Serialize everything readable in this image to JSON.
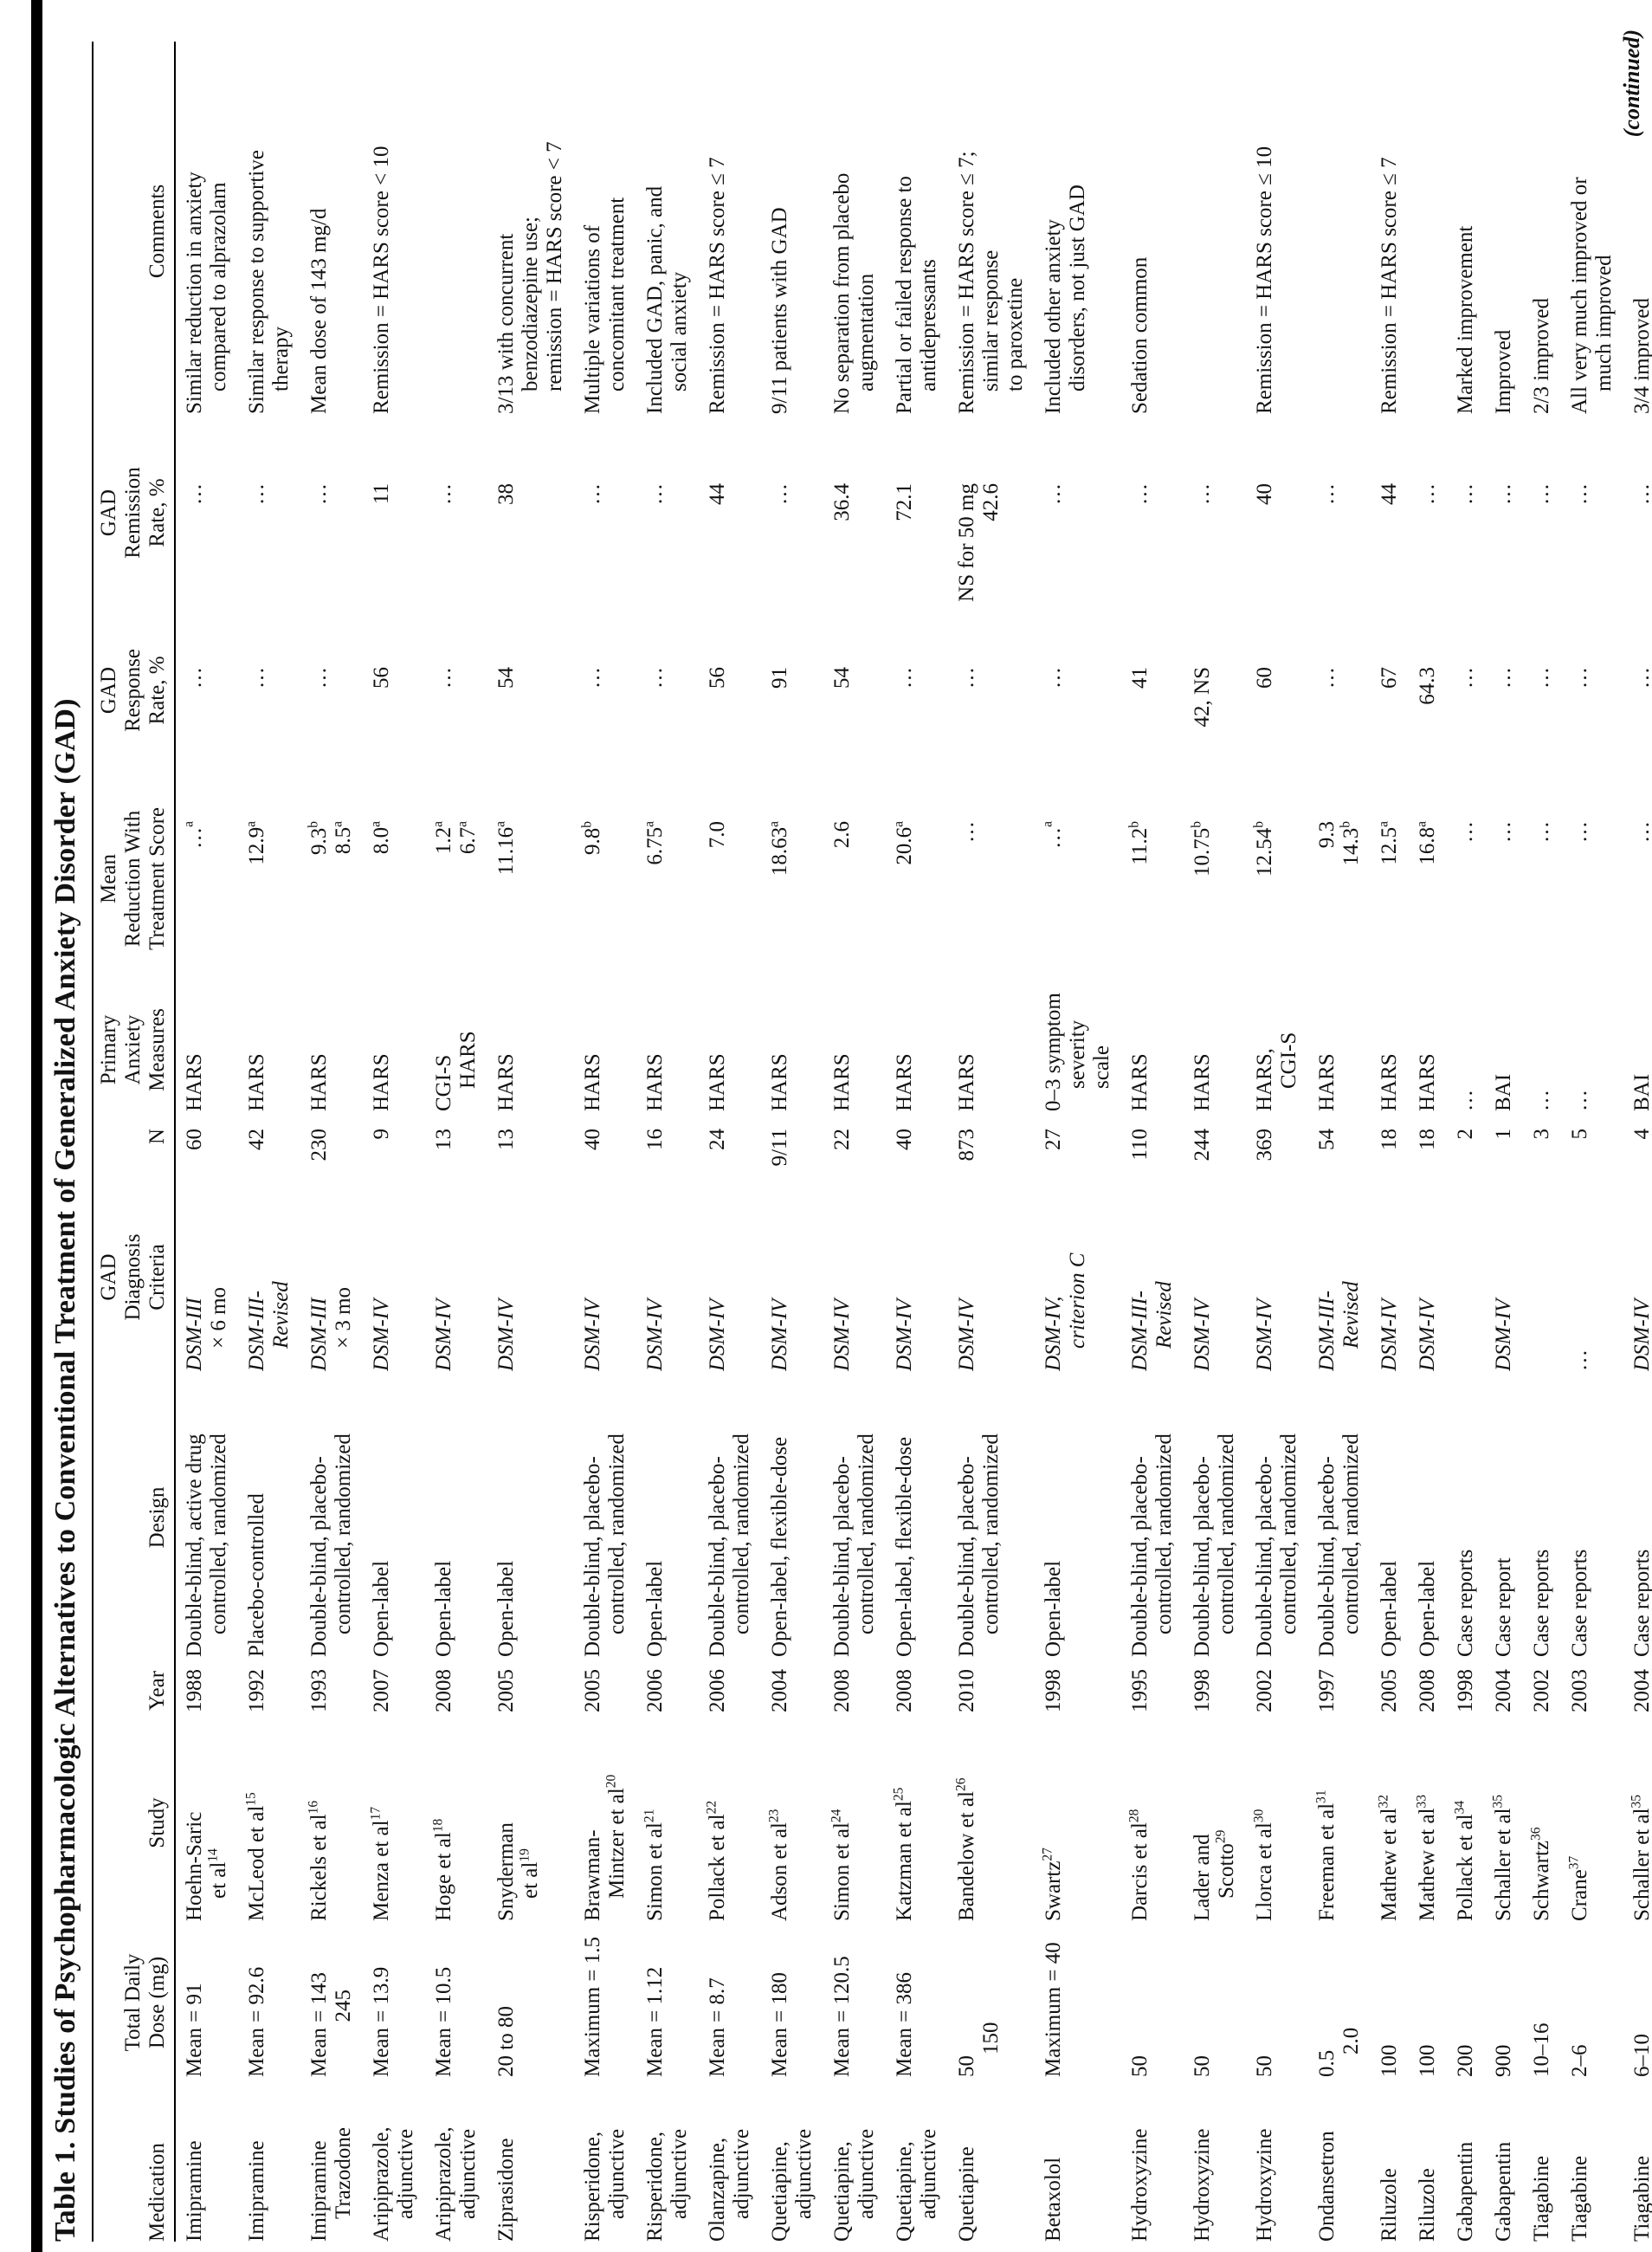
{
  "title": "Table 1. Studies of Psychopharmacologic Alternatives to Conventional Treatment of Generalized Anxiety Disorder (GAD)",
  "continued_note": "(continued)",
  "table": {
    "headers": {
      "med": "Medication",
      "dose": "Total Daily\nDose (mg)",
      "study": "Study",
      "year": "Year",
      "design": "Design",
      "criteria": "GAD\nDiagnosis\nCriteria",
      "n": "N",
      "measures": "Primary\nAnxiety\nMeasures",
      "reduction": "Mean\nReduction With\nTreatment Score",
      "response": "GAD\nResponse\nRate, %",
      "remission": "GAD\nRemission\nRate, %",
      "comments": "Comments"
    },
    "rows": [
      {
        "med": "Imipramine",
        "dose": "Mean = 91",
        "study": "Hoehn-Saric\net al^14",
        "year": "1988",
        "design": "Double-blind, active drug\ncontrolled, randomized",
        "criteria": "*DSM-III*\n× 6 mo",
        "n": "60",
        "measures": "HARS",
        "reduction": "…^a",
        "response": "…",
        "remission": "…",
        "comments": "Similar reduction in anxiety\ncompared to alprazolam"
      },
      {
        "med": "Imipramine",
        "dose": "Mean = 92.6",
        "study": "McLeod et al^15",
        "year": "1992",
        "design": "Placebo-controlled",
        "criteria": "*DSM-III-*\n*Revised*",
        "n": "42",
        "measures": "HARS",
        "reduction": "12.9^a",
        "response": "…",
        "remission": "…",
        "comments": "Similar response to supportive\ntherapy"
      },
      {
        "med": "Imipramine\nTrazodone",
        "dose": "Mean = 143\n   245",
        "study": "Rickels et al^16",
        "year": "1993",
        "design": "Double-blind, placebo-\ncontrolled, randomized",
        "criteria": "*DSM-III*\n× 3 mo",
        "n": "230",
        "measures": "HARS",
        "reduction": "9.3^b\n8.5^a",
        "response": "…",
        "remission": "…",
        "comments": "Mean dose of 143 mg/d"
      },
      {
        "med": "Aripiprazole,\nadjunctive",
        "dose": "Mean = 13.9",
        "study": "Menza et al^17",
        "year": "2007",
        "design": "Open-label",
        "criteria": "*DSM-IV*",
        "n": "9",
        "measures": "HARS",
        "reduction": "8.0^a",
        "response": "56",
        "remission": "11",
        "comments": "Remission = HARS score < 10"
      },
      {
        "med": "Aripiprazole,\nadjunctive",
        "dose": "Mean = 10.5",
        "study": "Hoge et al^18",
        "year": "2008",
        "design": "Open-label",
        "criteria": "*DSM-IV*",
        "n": "13",
        "measures": "CGI-S\nHARS",
        "reduction": "1.2^a\n6.7^a",
        "response": "…",
        "remission": "…",
        "comments": ""
      },
      {
        "med": "Ziprasidone",
        "dose": "20 to 80",
        "study": "Snyderman\net al^19",
        "year": "2005",
        "design": "Open-label",
        "criteria": "*DSM-IV*",
        "n": "13",
        "measures": "HARS",
        "reduction": "11.16^a",
        "response": "54",
        "remission": "38",
        "comments": "3/13 with concurrent\nbenzodiazepine use;\nremission = HARS score < 7"
      },
      {
        "med": "Risperidone,\nadjunctive",
        "dose": "Maximum = 1.5",
        "study": "Brawman-\nMintzer et al^20",
        "year": "2005",
        "design": "Double-blind, placebo-\ncontrolled, randomized",
        "criteria": "*DSM-IV*",
        "n": "40",
        "measures": "HARS",
        "reduction": "9.8^b",
        "response": "…",
        "remission": "…",
        "comments": "Multiple variations of\nconcomitant treatment"
      },
      {
        "med": "Risperidone,\nadjunctive",
        "dose": "Mean = 1.12",
        "study": "Simon et al^21",
        "year": "2006",
        "design": "Open-label",
        "criteria": "*DSM-IV*",
        "n": "16",
        "measures": "HARS",
        "reduction": "6.75^a",
        "response": "…",
        "remission": "…",
        "comments": "Included GAD, panic, and\nsocial anxiety"
      },
      {
        "med": "Olanzapine,\nadjunctive",
        "dose": "Mean = 8.7",
        "study": "Pollack et al^22",
        "year": "2006",
        "design": "Double-blind, placebo-\ncontrolled, randomized",
        "criteria": "*DSM-IV*",
        "n": "24",
        "measures": "HARS",
        "reduction": "7.0",
        "response": "56",
        "remission": "44",
        "comments": "Remission = HARS score ≤ 7"
      },
      {
        "med": "Quetiapine,\nadjunctive",
        "dose": "Mean = 180",
        "study": "Adson et al^23",
        "year": "2004",
        "design": "Open-label, flexible-dose",
        "criteria": "*DSM-IV*",
        "n": "9/11",
        "measures": "HARS",
        "reduction": "18.63^a",
        "response": "91",
        "remission": "…",
        "comments": "9/11 patients with GAD"
      },
      {
        "med": "Quetiapine,\nadjunctive",
        "dose": "Mean = 120.5",
        "study": "Simon et al^24",
        "year": "2008",
        "design": "Double-blind, placebo-\ncontrolled, randomized",
        "criteria": "*DSM-IV*",
        "n": "22",
        "measures": "HARS",
        "reduction": "2.6",
        "response": "54",
        "remission": "36.4",
        "comments": "No separation from placebo\naugmentation"
      },
      {
        "med": "Quetiapine,\nadjunctive",
        "dose": "Mean = 386",
        "study": "Katzman et al^25",
        "year": "2008",
        "design": "Open-label, flexible-dose",
        "criteria": "*DSM-IV*",
        "n": "40",
        "measures": "HARS",
        "reduction": "20.6^a",
        "response": "…",
        "remission": "72.1",
        "comments": "Partial or failed response to\nantidepressants"
      },
      {
        "med": "Quetiapine",
        "dose": "50\n150",
        "study": "Bandelow et al^26",
        "year": "2010",
        "design": "Double-blind, placebo-\ncontrolled, randomized",
        "criteria": "*DSM-IV*",
        "n": "873",
        "measures": "HARS",
        "reduction": "…",
        "response": "…",
        "remission": "NS for 50 mg\n42.6",
        "comments": "Remission = HARS score ≤ 7;\nsimilar response\nto paroxetine"
      },
      {
        "med": "Betaxolol",
        "dose": "Maximum = 40",
        "study": "Swartz^27",
        "year": "1998",
        "design": "Open-label",
        "criteria": "*DSM-IV,*\n*criterion C*",
        "n": "27",
        "measures": "0–3 symptom\nseverity scale",
        "reduction": "…^a",
        "response": "…",
        "remission": "…",
        "comments": "Included other anxiety\ndisorders, not just GAD"
      },
      {
        "med": "Hydroxyzine",
        "dose": "50",
        "study": "Darcis et al^28",
        "year": "1995",
        "design": "Double-blind, placebo-\ncontrolled, randomized",
        "criteria": "*DSM-III-*\n*Revised*",
        "n": "110",
        "measures": "HARS",
        "reduction": "11.2^b",
        "response": "41",
        "remission": "…",
        "comments": "Sedation common"
      },
      {
        "med": "Hydroxyzine",
        "dose": "50",
        "study": "Lader and\nScotto^29",
        "year": "1998",
        "design": "Double-blind, placebo-\ncontrolled, randomized",
        "criteria": "*DSM-IV*",
        "n": "244",
        "measures": "HARS",
        "reduction": "10.75^b",
        "response": "42, NS",
        "remission": "…",
        "comments": ""
      },
      {
        "med": "Hydroxyzine",
        "dose": "50",
        "study": "Llorca et al^30",
        "year": "2002",
        "design": "Double-blind, placebo-\ncontrolled, randomized",
        "criteria": "*DSM-IV*",
        "n": "369",
        "measures": "HARS,\nCGI-S",
        "reduction": "12.54^b",
        "response": "60",
        "remission": "40",
        "comments": "Remission = HARS score ≤ 10"
      },
      {
        "med": "Ondansetron",
        "dose": "0.5\n2.0",
        "study": "Freeman et al^31",
        "year": "1997",
        "design": "Double-blind, placebo-\ncontrolled, randomized",
        "criteria": "*DSM-III-*\n*Revised*",
        "n": "54",
        "measures": "HARS",
        "reduction": "9.3\n14.3^b",
        "response": "…",
        "remission": "…",
        "comments": ""
      },
      {
        "med": "Riluzole",
        "dose": "100",
        "study": "Mathew et al^32",
        "year": "2005",
        "design": "Open-label",
        "criteria": "*DSM-IV*",
        "n": "18",
        "measures": "HARS",
        "reduction": "12.5^a",
        "response": "67",
        "remission": "44",
        "comments": "Remission = HARS score ≤ 7"
      },
      {
        "med": "Riluzole",
        "dose": "100",
        "study": "Mathew et al^33",
        "year": "2008",
        "design": "Open-label",
        "criteria": "*DSM-IV*",
        "n": "18",
        "measures": "HARS",
        "reduction": "16.8^a",
        "response": "64.3",
        "remission": "…",
        "comments": ""
      },
      {
        "med": "Gabapentin",
        "dose": "200",
        "study": "Pollack et al^34",
        "year": "1998",
        "design": "Case reports",
        "criteria": "",
        "n": "2",
        "measures": "…",
        "reduction": "…",
        "response": "…",
        "remission": "…",
        "comments": "Marked improvement"
      },
      {
        "med": "Gabapentin",
        "dose": "900",
        "study": "Schaller et al^35",
        "year": "2004",
        "design": "Case report",
        "criteria": "*DSM-IV*",
        "n": "1",
        "measures": "BAI",
        "reduction": "…",
        "response": "…",
        "remission": "…",
        "comments": "Improved"
      },
      {
        "med": "Tiagabine",
        "dose": "10–16",
        "study": "Schwartz^36",
        "year": "2002",
        "design": "Case reports",
        "criteria": "",
        "n": "3",
        "measures": "…",
        "reduction": "…",
        "response": "…",
        "remission": "…",
        "comments": "2/3 improved"
      },
      {
        "med": "Tiagabine",
        "dose": "2–6",
        "study": "Crane^37",
        "year": "2003",
        "design": "Case reports",
        "criteria": "…",
        "n": "5",
        "measures": "…",
        "reduction": "…",
        "response": "…",
        "remission": "…",
        "comments": "All very much improved or\nmuch improved"
      },
      {
        "med": "Tiagabine",
        "dose": "6–10",
        "study": "Schaller et al^35",
        "year": "2004",
        "design": "Case reports",
        "criteria": "*DSM-IV*",
        "n": "4",
        "measures": "BAI",
        "reduction": "…",
        "response": "…",
        "remission": "…",
        "comments": "3/4 improved"
      }
    ]
  }
}
